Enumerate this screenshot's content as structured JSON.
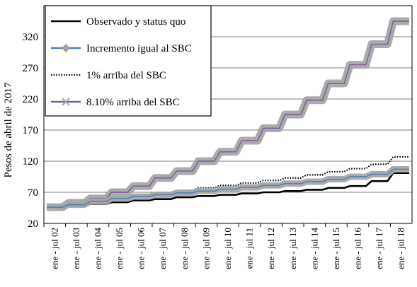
{
  "chart_data": {
    "type": "line",
    "title": "",
    "xlabel": "",
    "ylabel": "Pesos de abril de 2017",
    "ylim": [
      20,
      370
    ],
    "yticks": [
      20,
      70,
      120,
      170,
      220,
      270,
      320
    ],
    "grid": "horizontal",
    "legend_position": "top-left",
    "categories": [
      "ene - jul 02",
      "ene - jul 03",
      "ene - jul 04",
      "ene - jul 05",
      "ene - jul 06",
      "ene - jul 07",
      "ene - jul 08",
      "ene - jul 09",
      "ene - jul 10",
      "ene - jul 11",
      "ene - jul 12",
      "ene - jul 13",
      "ene - jul 14",
      "ene - jul 15",
      "ene - jul 16",
      "ene - jul 17",
      "ene - jul 18"
    ],
    "series": [
      {
        "name": "Observado y status quo",
        "color": "#000000",
        "style": "solid",
        "marker": "none",
        "values": [
          46,
          48,
          51,
          54,
          57,
          59,
          62,
          64,
          66,
          68,
          70,
          72,
          74,
          77,
          80,
          88,
          101
        ]
      },
      {
        "name": "Incremento igual al SBC",
        "color": "#4a7ebb",
        "style": "solid",
        "marker": "diamond",
        "values": [
          46,
          50,
          55,
          60,
          63,
          66,
          69,
          72,
          75,
          78,
          81,
          84,
          87,
          91,
          95,
          99,
          107
        ]
      },
      {
        "name": "1% arriba del SBC",
        "color": "#000000",
        "style": "dotted",
        "marker": "none",
        "values": [
          46,
          51,
          56,
          61,
          65,
          69,
          73,
          77,
          81,
          85,
          89,
          93,
          98,
          103,
          108,
          115,
          127
        ]
      },
      {
        "name": "8.10% arriba del SBC",
        "color": "#7d5a9e",
        "style": "solid",
        "marker": "x",
        "values": [
          46,
          53,
          60,
          70,
          80,
          93,
          104,
          120,
          135,
          153,
          173,
          195,
          218,
          245,
          275,
          308,
          345
        ]
      }
    ]
  }
}
